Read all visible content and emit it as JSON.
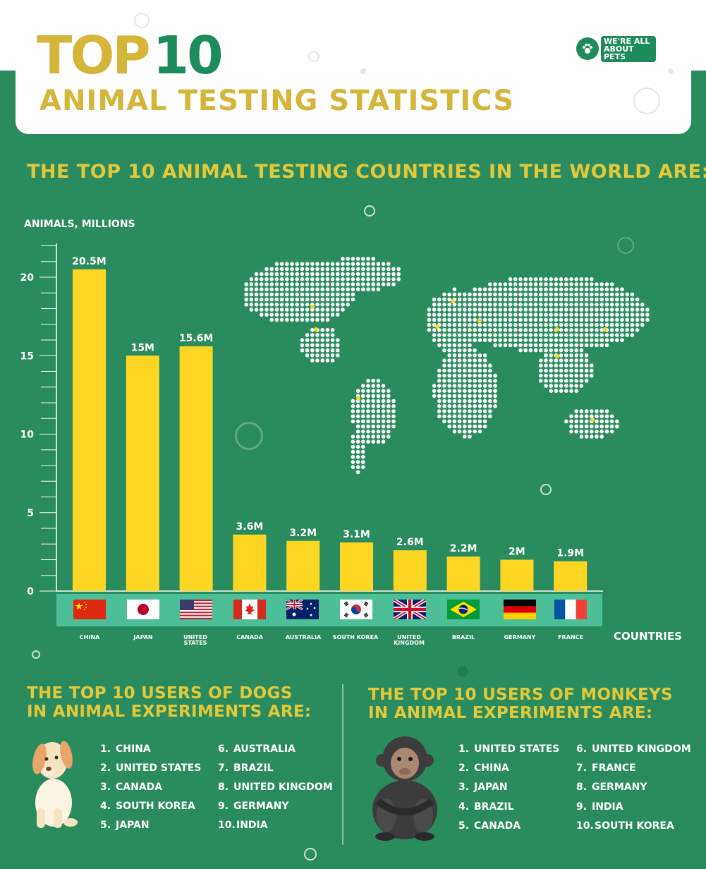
{
  "header": {
    "title_part1": "TOP",
    "title_part2": "10",
    "subtitle": "ANIMAL TESTING STATISTICS",
    "logo_text": "WE'RE ALL ABOUT PETS"
  },
  "countries_section": {
    "heading": "THE TOP 10 ANIMAL TESTING COUNTRIES IN THE WORLD ARE:"
  },
  "chart_data": {
    "type": "bar",
    "ylabel": "ANIMALS, MILLIONS",
    "xlabel": "COUNTRIES",
    "ylim": [
      0,
      22
    ],
    "yticks": [
      0,
      5,
      10,
      15,
      20
    ],
    "grid": false,
    "categories": [
      "CHINA",
      "JAPAN",
      "UNITED STATES",
      "CANADA",
      "AUSTRALIA",
      "SOUTH KOREA",
      "UNITED KINGDOM",
      "BRAZIL",
      "GERMANY",
      "FRANCE"
    ],
    "values": [
      20.5,
      15,
      15.6,
      3.6,
      3.2,
      3.1,
      2.6,
      2.2,
      2,
      1.9
    ],
    "data_labels": [
      "20.5M",
      "15M",
      "15.6M",
      "3.6M",
      "3.2M",
      "3.1M",
      "2.6M",
      "2.2M",
      "2M",
      "1.9M"
    ],
    "bar_color": "#fcd623"
  },
  "dogs_section": {
    "heading_line1": "THE TOP 10 USERS OF DOGS",
    "heading_line2": "IN ANIMAL EXPERIMENTS ARE:",
    "items": [
      {
        "num": "1.",
        "name": "CHINA"
      },
      {
        "num": "2.",
        "name": "UNITED STATES"
      },
      {
        "num": "3.",
        "name": "CANADA"
      },
      {
        "num": "4.",
        "name": "SOUTH KOREA"
      },
      {
        "num": "5.",
        "name": "JAPAN"
      },
      {
        "num": "6.",
        "name": "AUSTRALIA"
      },
      {
        "num": "7.",
        "name": "BRAZIL"
      },
      {
        "num": "8.",
        "name": "UNITED KINGDOM"
      },
      {
        "num": "9.",
        "name": "GERMANY"
      },
      {
        "num": "10.",
        "name": "INDIA"
      }
    ]
  },
  "monkeys_section": {
    "heading_line1": "THE TOP 10 USERS OF MONKEYS",
    "heading_line2": "IN ANIMAL EXPERIMENTS ARE:",
    "items": [
      {
        "num": "1.",
        "name": "UNITED STATES"
      },
      {
        "num": "2.",
        "name": "CHINA"
      },
      {
        "num": "3.",
        "name": "JAPAN"
      },
      {
        "num": "4.",
        "name": "BRAZIL"
      },
      {
        "num": "5.",
        "name": "CANADA"
      },
      {
        "num": "6.",
        "name": "UNITED KINGDOM"
      },
      {
        "num": "7.",
        "name": "FRANCE"
      },
      {
        "num": "8.",
        "name": "GERMANY"
      },
      {
        "num": "9.",
        "name": "INDIA"
      },
      {
        "num": "10.",
        "name": "SOUTH KOREA"
      }
    ]
  },
  "colors": {
    "background": "#2a8c5e",
    "accent_yellow": "#e3c93a",
    "title_green": "#1e8b5c",
    "flag_band": "#4cbf98"
  }
}
